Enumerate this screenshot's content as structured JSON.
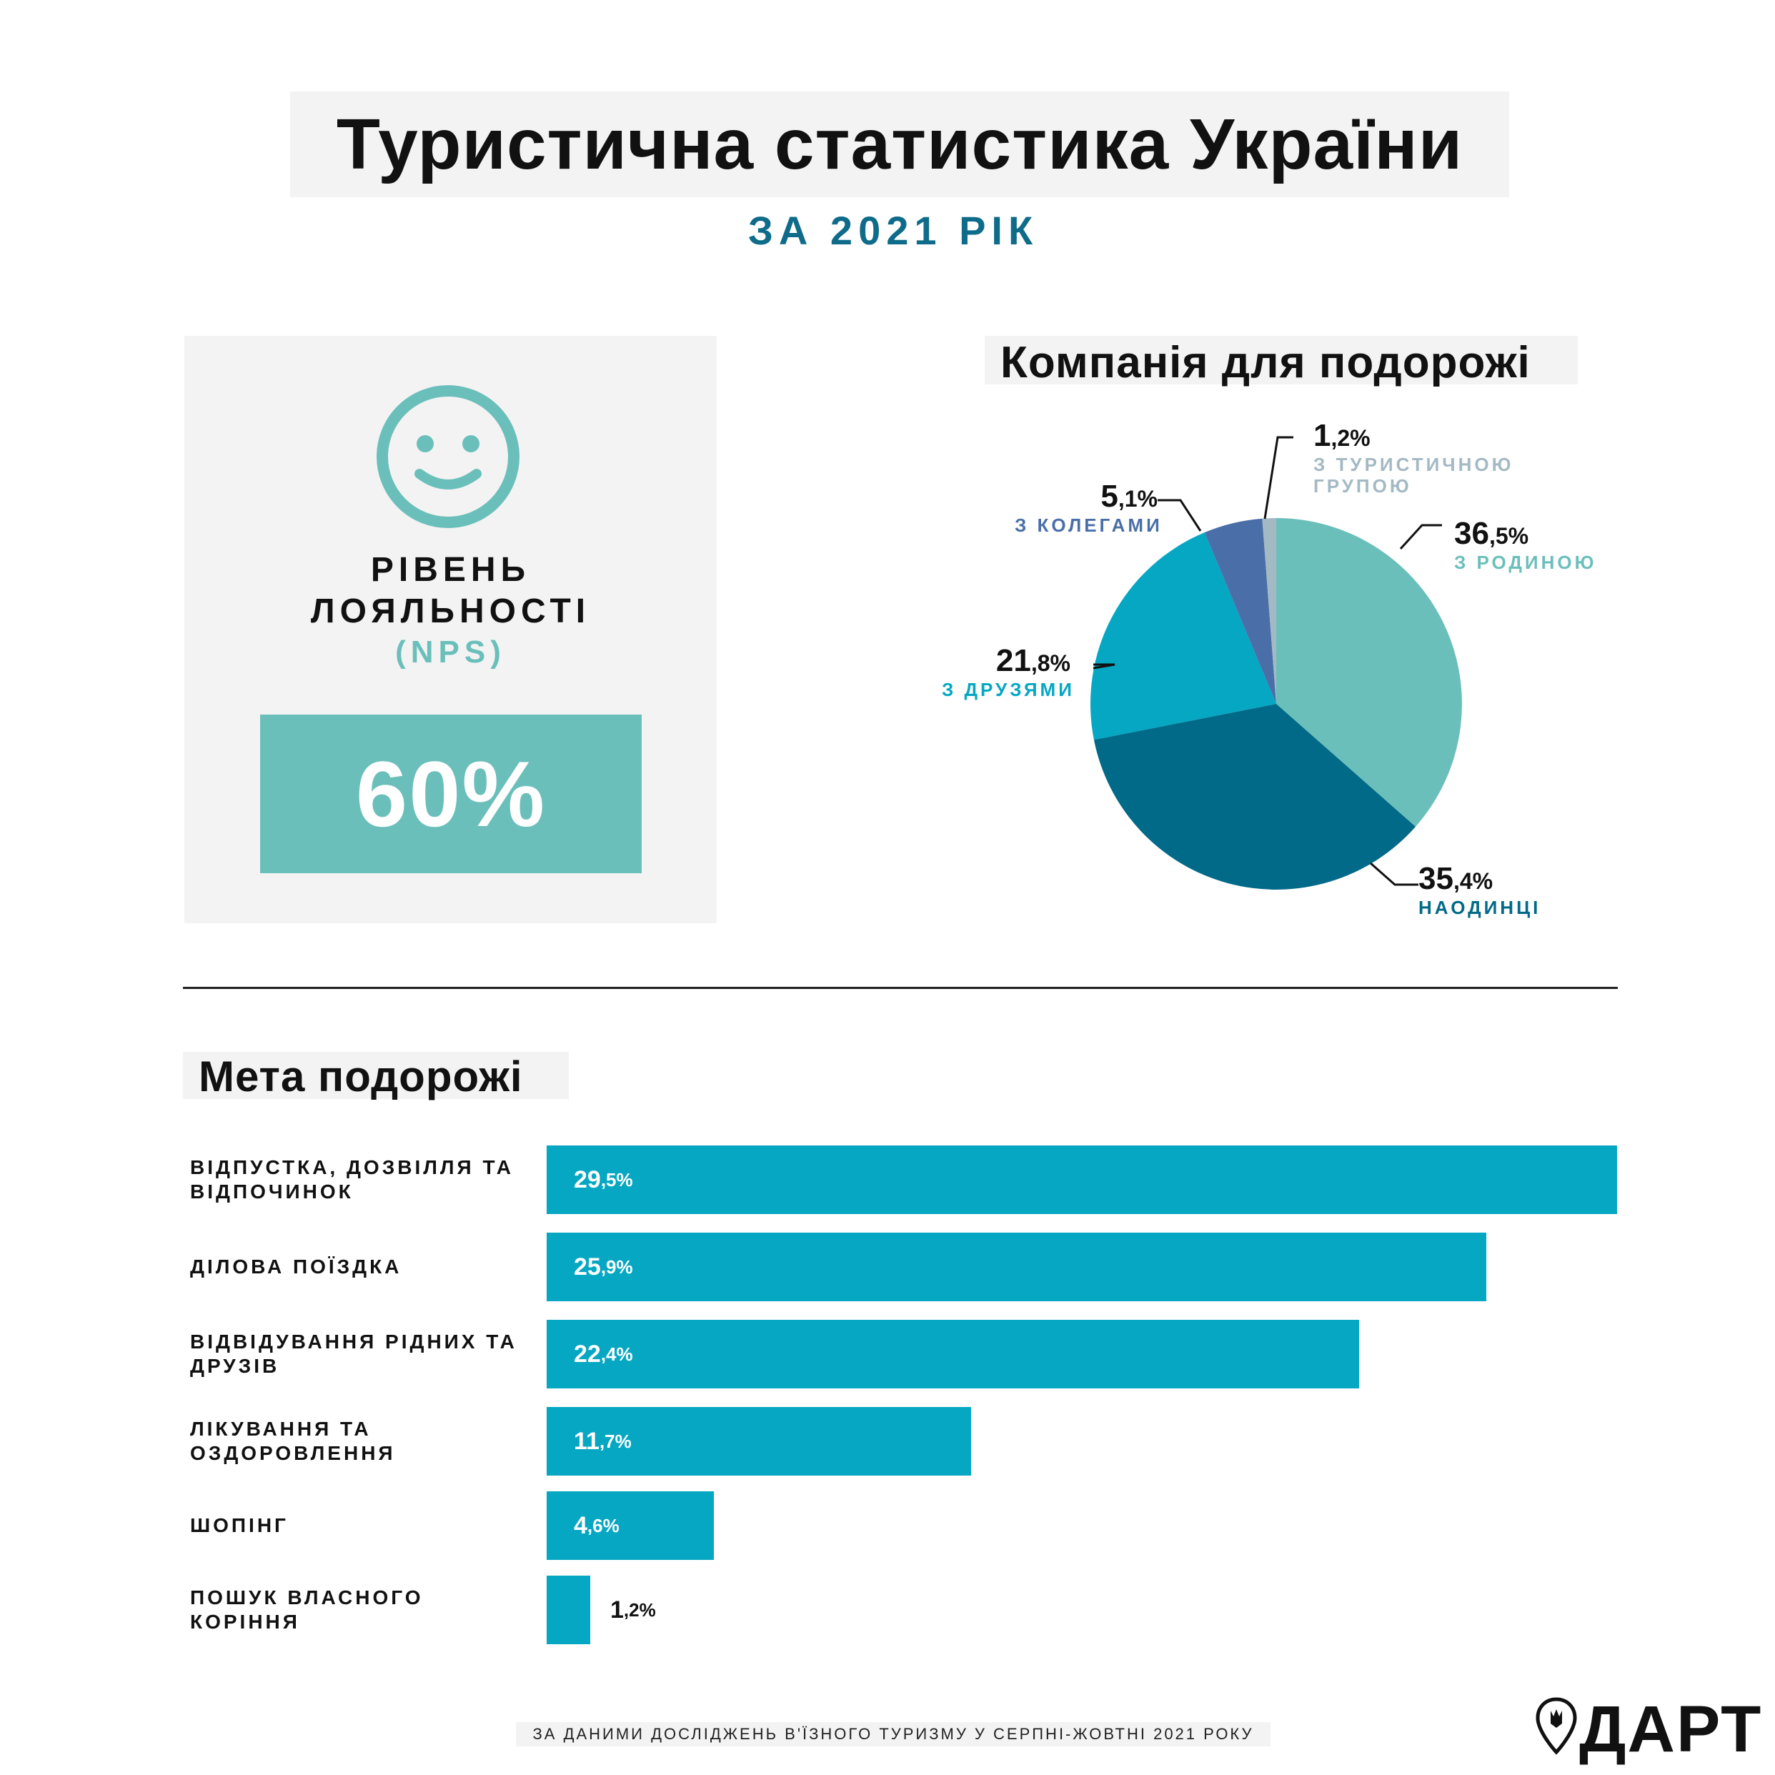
{
  "title": "Туристична статистика України",
  "subtitle": "ЗА 2021 РІК",
  "nps": {
    "label_line1": "РІВЕНЬ",
    "label_line2": "ЛОЯЛЬНОСТІ",
    "label_line3": "(NPS)",
    "value": "60%",
    "icon": "smiley-icon"
  },
  "colors": {
    "teal_light": "#6bbfbb",
    "teal_dark": "#006a88",
    "cyan": "#05a7c3",
    "blue": "#4a6fa8",
    "grey_blue": "#a3b9c4",
    "subtitle": "#0e6b8a"
  },
  "chart_data": [
    {
      "type": "pie",
      "title": "Компанія для подорожі",
      "slices": [
        {
          "label": "З РОДИНОЮ",
          "value": 36.5,
          "int": "36",
          "dec": ",5%",
          "color": "#6bbfbb"
        },
        {
          "label": "НАОДИНЦІ",
          "value": 35.4,
          "int": "35",
          "dec": ",4%",
          "color": "#006a88"
        },
        {
          "label": "З ДРУЗЯМИ",
          "value": 21.8,
          "int": "21",
          "dec": ",8%",
          "color": "#05a7c3"
        },
        {
          "label": "З КОЛЕГАМИ",
          "value": 5.1,
          "int": "5",
          "dec": ",1%",
          "color": "#4a6fa8"
        },
        {
          "label_line1": "З ТУРИСТИЧНОЮ",
          "label_line2": "ГРУПОЮ",
          "value": 1.2,
          "int": "1",
          "dec": ",2%",
          "color": "#a3b9c4"
        }
      ]
    },
    {
      "type": "bar",
      "orientation": "horizontal",
      "title": "Мета подорожі",
      "xlim": [
        0,
        29.5
      ],
      "bars": [
        {
          "category_line1": "ВІДПУСТКА, ДОЗВІЛЛЯ ТА",
          "category_line2": "ВІДПОЧИНОК",
          "value": 29.5,
          "int": "29",
          "dec": ",5%"
        },
        {
          "category_line1": "ДІЛОВА ПОЇЗДКА",
          "category_line2": "",
          "value": 25.9,
          "int": "25",
          "dec": ",9%"
        },
        {
          "category_line1": "ВІДВІДУВАННЯ РІДНИХ ТА",
          "category_line2": "ДРУЗІВ",
          "value": 22.4,
          "int": "22",
          "dec": ",4%"
        },
        {
          "category_line1": "ЛІКУВАННЯ ТА",
          "category_line2": "ОЗДОРОВЛЕННЯ",
          "value": 11.7,
          "int": "11",
          "dec": ",7%"
        },
        {
          "category_line1": "ШОПІНГ",
          "category_line2": "",
          "value": 4.6,
          "int": "4",
          "dec": ",6%"
        },
        {
          "category_line1": "ПОШУК ВЛАСНОГО",
          "category_line2": "КОРІННЯ",
          "value": 1.2,
          "int": "1",
          "dec": ",2%"
        }
      ]
    }
  ],
  "footer": "ЗА ДАНИМИ ДОСЛІДЖЕНЬ В'ЇЗНОГО ТУРИЗМУ У СЕРПНІ-ЖОВТНІ 2021 РОКУ",
  "logo": {
    "text": "ДАРТ",
    "icon": "location-pin-icon"
  }
}
